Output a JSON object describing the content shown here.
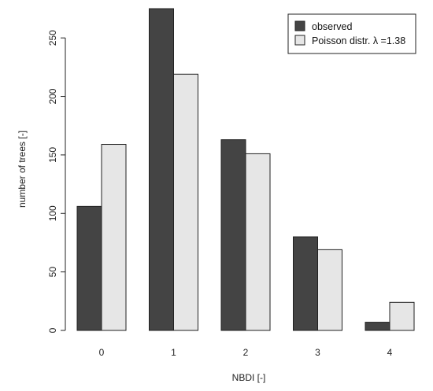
{
  "chart_data": {
    "type": "bar",
    "title": "",
    "xlabel": "NBDI [-]",
    "ylabel": "number of trees [-]",
    "categories": [
      "0",
      "1",
      "2",
      "3",
      "4"
    ],
    "series": [
      {
        "name": "observed",
        "values": [
          106,
          275,
          163,
          80,
          7
        ],
        "color": "#444444"
      },
      {
        "name": "Poisson distr. λ =1.38",
        "values": [
          159,
          219,
          151,
          69,
          24
        ],
        "color": "#e6e6e6"
      }
    ],
    "ylim": [
      0,
      275
    ],
    "yticks": [
      0,
      50,
      100,
      150,
      200,
      250
    ],
    "grid": false,
    "legend_position": "top-right"
  }
}
